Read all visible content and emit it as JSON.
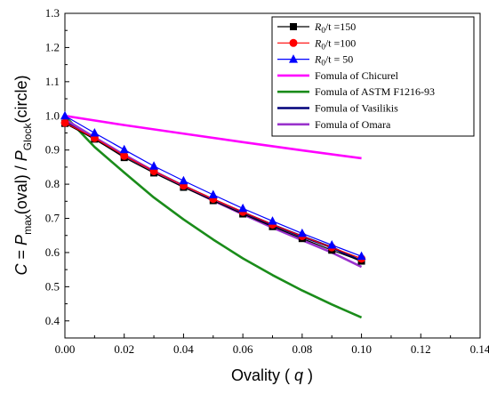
{
  "chart_data": {
    "type": "line",
    "xlabel": {
      "main": "Ovality ( ",
      "var": "q",
      "close": " )"
    },
    "ylabel": {
      "c": "C",
      "eq": " = ",
      "p1": "P",
      "s1": "max",
      "t1": "(oval) / ",
      "p2": "P",
      "s2": "Glock",
      "t2": "(circle)"
    },
    "xlim": [
      0.0,
      0.14
    ],
    "ylim": [
      0.35,
      1.3
    ],
    "xticks": [
      "0.00",
      "0.02",
      "0.04",
      "0.06",
      "0.08",
      "0.10",
      "0.12",
      "0.14"
    ],
    "yticks": [
      "0.4",
      "0.5",
      "0.6",
      "0.7",
      "0.8",
      "0.9",
      "1.0",
      "1.1",
      "1.2",
      "1.3"
    ],
    "legend_position": "top-right",
    "series": [
      {
        "legend_prefix": "R",
        "legend_sub": "0",
        "legend_suffix": "/t =150",
        "color": "#000000",
        "marker": "square",
        "x": [
          0,
          0.01,
          0.02,
          0.03,
          0.04,
          0.05,
          0.06,
          0.07,
          0.08,
          0.09,
          0.1
        ],
        "y": [
          0.978,
          0.932,
          0.878,
          0.833,
          0.791,
          0.752,
          0.713,
          0.676,
          0.641,
          0.607,
          0.575
        ]
      },
      {
        "legend_prefix": "R",
        "legend_sub": "0",
        "legend_suffix": "/t =100",
        "color": "#ff0000",
        "marker": "circle",
        "x": [
          0,
          0.01,
          0.02,
          0.03,
          0.04,
          0.05,
          0.06,
          0.07,
          0.08,
          0.09,
          0.1
        ],
        "y": [
          0.98,
          0.935,
          0.883,
          0.838,
          0.796,
          0.757,
          0.719,
          0.682,
          0.648,
          0.615,
          0.582
        ]
      },
      {
        "legend_prefix": "R",
        "legend_sub": "0",
        "legend_suffix": "/t = 50",
        "color": "#0000ff",
        "marker": "triangle",
        "x": [
          0,
          0.01,
          0.02,
          0.03,
          0.04,
          0.05,
          0.06,
          0.07,
          0.08,
          0.09,
          0.1
        ],
        "y": [
          1.0,
          0.95,
          0.901,
          0.853,
          0.81,
          0.769,
          0.729,
          0.692,
          0.656,
          0.622,
          0.589
        ]
      },
      {
        "name": "Fomula of Chicurel",
        "color": "#ff00ff",
        "x": [
          0,
          0.02,
          0.04,
          0.06,
          0.08,
          0.1
        ],
        "y": [
          1.0,
          0.973,
          0.948,
          0.923,
          0.899,
          0.876
        ]
      },
      {
        "name": "Fomula of  ASTM F1216-93",
        "color": "#1a8c1a",
        "x": [
          0,
          0.01,
          0.02,
          0.03,
          0.04,
          0.05,
          0.06,
          0.07,
          0.08,
          0.09,
          0.1
        ],
        "y": [
          1.0,
          0.909,
          0.834,
          0.761,
          0.697,
          0.638,
          0.583,
          0.534,
          0.489,
          0.448,
          0.41
        ]
      },
      {
        "name": "Fomula of  Vasilikis",
        "color": "#00007a",
        "x": [
          0,
          0.01,
          0.02,
          0.03,
          0.04,
          0.05,
          0.06,
          0.07,
          0.08,
          0.09,
          0.1
        ],
        "y": [
          0.985,
          0.933,
          0.884,
          0.838,
          0.795,
          0.755,
          0.717,
          0.681,
          0.647,
          0.615,
          0.575
        ]
      },
      {
        "name": "Fomula of  Omara",
        "color": "#9932cc",
        "x": [
          0,
          0.01,
          0.02,
          0.03,
          0.04,
          0.05,
          0.06,
          0.07,
          0.08,
          0.09,
          0.1
        ],
        "y": [
          0.99,
          0.937,
          0.886,
          0.838,
          0.794,
          0.752,
          0.712,
          0.673,
          0.636,
          0.6,
          0.558
        ]
      }
    ]
  }
}
